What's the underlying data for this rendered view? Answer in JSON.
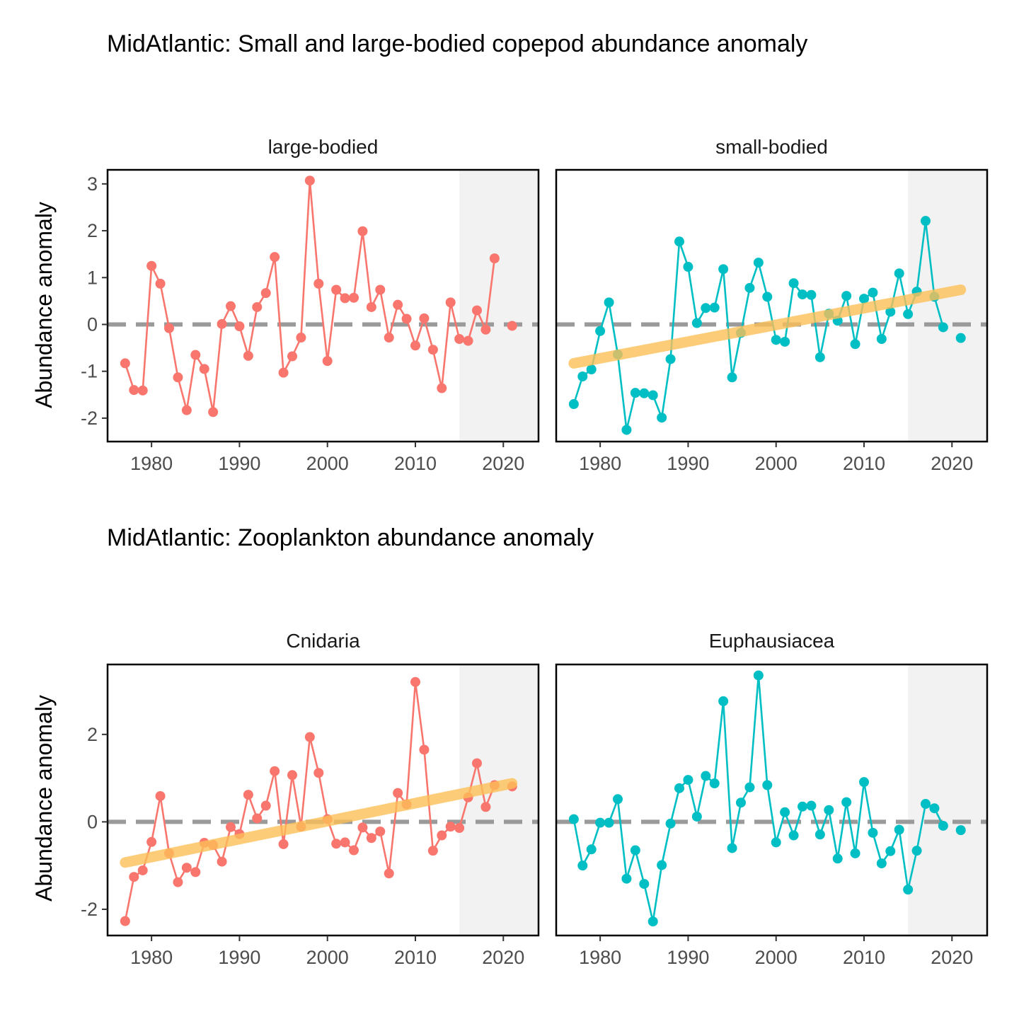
{
  "figure": {
    "sections": [
      {
        "title": "MidAtlantic: Small and large-bodied copepod abundance anomaly"
      },
      {
        "title": "MidAtlantic: Zooplankton abundance anomaly"
      }
    ],
    "ylabel": "Abundance anomaly"
  },
  "colors": {
    "series_left": "#F8766D",
    "series_right": "#00BFC4",
    "trend": "#FDBF56",
    "zero_line": "#9a9a9a",
    "shade": "#f2f2f2"
  },
  "chart_data": [
    {
      "type": "line",
      "panel": "large-bodied",
      "section": 0,
      "color": "series_left",
      "xlim": [
        1975,
        2024
      ],
      "ylim": [
        -2.5,
        3.3
      ],
      "xticks": [
        1980,
        1990,
        2000,
        2010,
        2020
      ],
      "yticks": [
        -2,
        -1,
        0,
        1,
        2,
        3
      ],
      "shaded_from": 2015,
      "reference_y": 0,
      "x": [
        1977,
        1978,
        1979,
        1980,
        1981,
        1982,
        1983,
        1984,
        1985,
        1986,
        1987,
        1988,
        1989,
        1990,
        1991,
        1992,
        1993,
        1994,
        1995,
        1996,
        1997,
        1998,
        1999,
        2000,
        2001,
        2002,
        2003,
        2004,
        2005,
        2006,
        2007,
        2008,
        2009,
        2010,
        2011,
        2012,
        2013,
        2014,
        2015,
        2016,
        2017,
        2018,
        2019,
        2021
      ],
      "values": [
        -0.83,
        -1.4,
        -1.41,
        1.25,
        0.87,
        -0.08,
        -1.13,
        -1.83,
        -0.65,
        -0.95,
        -1.87,
        0.01,
        0.39,
        -0.04,
        -0.67,
        0.37,
        0.67,
        1.44,
        -1.03,
        -0.68,
        -0.28,
        3.07,
        0.87,
        -0.78,
        0.74,
        0.56,
        0.57,
        1.99,
        0.37,
        0.74,
        -0.28,
        0.42,
        0.12,
        -0.45,
        0.13,
        -0.54,
        -1.36,
        0.47,
        -0.31,
        -0.35,
        0.3,
        -0.11,
        1.41,
        -0.03
      ],
      "segment_breaks_after": [
        2019
      ],
      "trend": null
    },
    {
      "type": "line",
      "panel": "small-bodied",
      "section": 0,
      "color": "series_right",
      "xlim": [
        1975,
        2024
      ],
      "ylim": [
        -2.5,
        3.3
      ],
      "xticks": [
        1980,
        1990,
        2000,
        2010,
        2020
      ],
      "yticks": [
        -2,
        -1,
        0,
        1,
        2,
        3
      ],
      "shaded_from": 2015,
      "reference_y": 0,
      "x": [
        1977,
        1978,
        1979,
        1980,
        1981,
        1982,
        1983,
        1984,
        1985,
        1986,
        1987,
        1988,
        1989,
        1990,
        1991,
        1992,
        1993,
        1994,
        1995,
        1996,
        1997,
        1998,
        1999,
        2000,
        2001,
        2002,
        2003,
        2004,
        2005,
        2006,
        2007,
        2008,
        2009,
        2010,
        2011,
        2012,
        2013,
        2014,
        2015,
        2016,
        2017,
        2018,
        2019,
        2021
      ],
      "values": [
        -1.7,
        -1.11,
        -0.96,
        -0.14,
        0.47,
        -0.64,
        -2.25,
        -1.46,
        -1.47,
        -1.51,
        -1.99,
        -0.74,
        1.77,
        1.23,
        0.03,
        0.35,
        0.36,
        1.18,
        -1.13,
        -0.18,
        0.78,
        1.32,
        0.59,
        -0.33,
        -0.37,
        0.88,
        0.64,
        0.63,
        -0.7,
        0.23,
        0.08,
        0.61,
        -0.42,
        0.55,
        0.68,
        -0.31,
        0.27,
        1.09,
        0.22,
        0.7,
        2.21,
        0.59,
        -0.06,
        -0.29
      ],
      "segment_breaks_after": [
        2019
      ],
      "trend": {
        "x": [
          1977,
          2021
        ],
        "y": [
          -0.83,
          0.74
        ]
      }
    },
    {
      "type": "line",
      "panel": "Cnidaria",
      "section": 1,
      "color": "series_left",
      "xlim": [
        1975,
        2024
      ],
      "ylim": [
        -2.6,
        3.6
      ],
      "xticks": [
        1980,
        1990,
        2000,
        2010,
        2020
      ],
      "yticks": [
        -2,
        0,
        2
      ],
      "shaded_from": 2015,
      "reference_y": 0,
      "x": [
        1977,
        1978,
        1979,
        1980,
        1981,
        1982,
        1983,
        1984,
        1985,
        1986,
        1987,
        1988,
        1989,
        1990,
        1991,
        1992,
        1993,
        1994,
        1995,
        1996,
        1997,
        1998,
        1999,
        2000,
        2001,
        2002,
        2003,
        2004,
        2005,
        2006,
        2007,
        2008,
        2009,
        2010,
        2011,
        2012,
        2013,
        2014,
        2015,
        2016,
        2017,
        2018,
        2019,
        2021
      ],
      "values": [
        -2.27,
        -1.26,
        -1.11,
        -0.46,
        0.59,
        -0.72,
        -1.38,
        -1.05,
        -1.15,
        -0.48,
        -0.53,
        -0.91,
        -0.12,
        -0.28,
        0.62,
        0.08,
        0.37,
        1.16,
        -0.51,
        1.07,
        -0.11,
        1.94,
        1.12,
        0.06,
        -0.5,
        -0.47,
        -0.65,
        -0.13,
        -0.37,
        -0.22,
        -1.18,
        0.66,
        0.4,
        3.2,
        1.65,
        -0.66,
        -0.31,
        -0.11,
        -0.14,
        0.56,
        1.34,
        0.34,
        0.84,
        0.81
      ],
      "segment_breaks_after": [
        2019
      ],
      "trend": {
        "x": [
          1977,
          2021
        ],
        "y": [
          -0.93,
          0.88
        ]
      }
    },
    {
      "type": "line",
      "panel": "Euphausiacea",
      "section": 1,
      "color": "series_right",
      "xlim": [
        1975,
        2024
      ],
      "ylim": [
        -2.6,
        3.6
      ],
      "xticks": [
        1980,
        1990,
        2000,
        2010,
        2020
      ],
      "yticks": [
        -2,
        0,
        2
      ],
      "shaded_from": 2015,
      "reference_y": 0,
      "x": [
        1977,
        1978,
        1979,
        1980,
        1981,
        1982,
        1983,
        1984,
        1985,
        1986,
        1987,
        1988,
        1989,
        1990,
        1991,
        1992,
        1993,
        1994,
        1995,
        1996,
        1997,
        1998,
        1999,
        2000,
        2001,
        2002,
        2003,
        2004,
        2005,
        2006,
        2007,
        2008,
        2009,
        2010,
        2011,
        2012,
        2013,
        2014,
        2015,
        2016,
        2017,
        2018,
        2019,
        2021
      ],
      "values": [
        0.06,
        -1.0,
        -0.63,
        -0.02,
        -0.02,
        0.52,
        -1.3,
        -0.65,
        -1.42,
        -2.28,
        -0.99,
        -0.04,
        0.77,
        0.96,
        0.12,
        1.05,
        0.88,
        2.76,
        -0.6,
        0.44,
        0.79,
        3.35,
        0.84,
        -0.47,
        0.22,
        -0.31,
        0.35,
        0.37,
        -0.29,
        0.27,
        -0.84,
        0.45,
        -0.72,
        0.91,
        -0.25,
        -0.95,
        -0.67,
        -0.18,
        -1.55,
        -0.66,
        0.41,
        0.31,
        -0.09,
        -0.19
      ],
      "segment_breaks_after": [
        2019
      ],
      "trend": null
    }
  ]
}
